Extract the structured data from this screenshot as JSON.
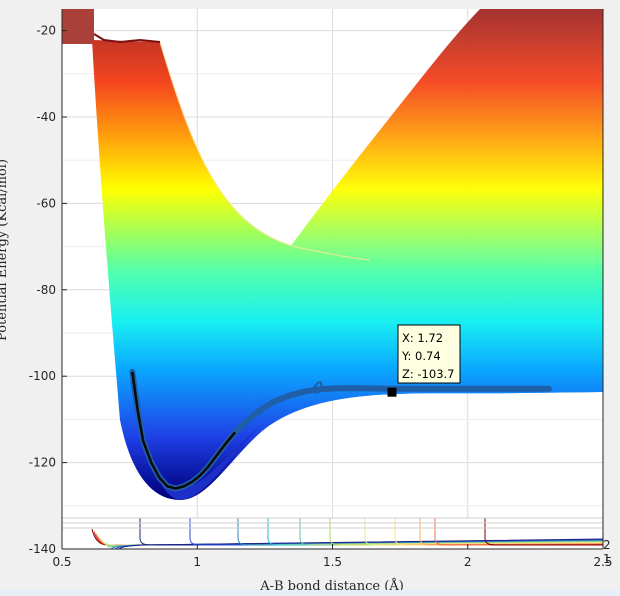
{
  "chart_data": {
    "type": "surface",
    "xlabel": "A-B bond distance (Å)",
    "ylabel": "Potential Energy (Kcal/mol)",
    "xlim": [
      0.5,
      2.5
    ],
    "ylim": [
      -140,
      -15
    ],
    "x_ticks": [
      "0.5",
      "1",
      "1.5",
      "2",
      "2.5"
    ],
    "y_ticks": [
      "-20",
      "-40",
      "-60",
      "-80",
      "-100",
      "-120",
      "-140"
    ],
    "z_ticks": [
      "2",
      "1"
    ],
    "colormap": "jet",
    "grid": true,
    "trajectory": {
      "x": [
        0.76,
        0.78,
        0.8,
        0.83,
        0.86,
        0.89,
        0.92,
        0.95,
        0.98,
        1.01,
        1.04,
        1.07,
        1.1,
        1.14,
        1.18,
        1.23,
        1.28,
        1.34,
        1.4,
        1.46,
        1.52,
        1.6,
        1.7,
        1.8,
        1.9,
        2.0,
        2.1,
        2.2,
        2.3
      ],
      "y": [
        -99,
        -108,
        -115,
        -120,
        -123.5,
        -125.5,
        -126,
        -125.5,
        -124.5,
        -123,
        -121,
        -118.5,
        -116,
        -113,
        -110.5,
        -108,
        -106,
        -104.5,
        -103.5,
        -103,
        -102.8,
        -102.8,
        -102.9,
        -102.9,
        -102.9,
        -102.9,
        -102.9,
        -102.9,
        -102.9
      ]
    },
    "datatip": {
      "x_label": "X: 1.72",
      "y_label": "Y: 0.74",
      "z_label": "Z: -103.7",
      "x": 1.72,
      "y": -103.7
    },
    "colors": {
      "axes_bg": "#ffffff",
      "grid": "#dcdcdc",
      "trajectory": "#1f5fa8",
      "trajectory_dark": "#0a0a0a",
      "datatip_bg": "#ffffe1"
    }
  }
}
